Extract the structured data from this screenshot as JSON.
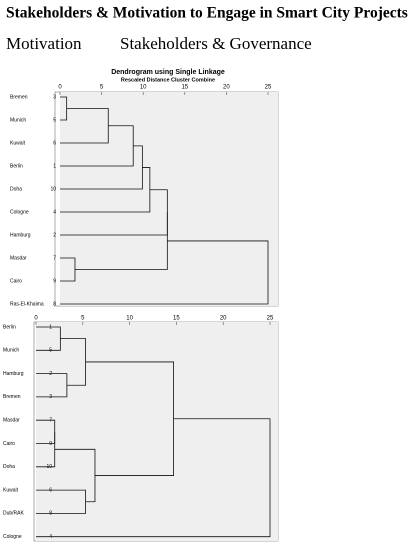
{
  "title": "Stakeholders & Motivation to Engage in Smart City Projects",
  "headings": [
    "Motivation",
    "Stakeholders & Governance"
  ],
  "chart_data": [
    {
      "type": "dendrogram",
      "title": "Dendrogram using Single Linkage",
      "subtitle": "Rescaled Distance Cluster Combine",
      "labels": [
        "Bremen",
        "Munich",
        "Kuwait",
        "Berlin",
        "Doha",
        "Cologne",
        "Hamburg",
        "Masdar",
        "Cairo",
        "Ras-El-Khaima"
      ],
      "case_numbers": [
        3,
        5,
        6,
        1,
        10,
        4,
        2,
        7,
        9,
        8
      ],
      "merges": [
        {
          "join": [
            0,
            1
          ],
          "distance": 0.8
        },
        {
          "join": [
            7,
            8
          ],
          "distance": 1.8
        },
        {
          "join": [
            10,
            2
          ],
          "distance": 5.8
        },
        {
          "join": [
            12,
            3
          ],
          "distance": 8.8
        },
        {
          "join": [
            13,
            4
          ],
          "distance": 9.9
        },
        {
          "join": [
            14,
            5
          ],
          "distance": 10.8
        },
        {
          "join": [
            15,
            6
          ],
          "distance": 12.9
        },
        {
          "join": [
            16,
            11
          ],
          "distance": 12.9
        },
        {
          "join": [
            17,
            9
          ],
          "distance": 25
        }
      ],
      "xlim": [
        0,
        25
      ],
      "xticks": [
        0,
        5,
        10,
        15,
        20,
        25
      ]
    },
    {
      "type": "dendrogram",
      "labels": [
        "Berlin",
        "Munich",
        "Hamburg",
        "Bremen",
        "Masdar",
        "Cairo",
        "Doha",
        "Kuwait",
        "Dub/RAK",
        "Cologne"
      ],
      "case_numbers": [
        1,
        5,
        2,
        3,
        7,
        9,
        10,
        6,
        8,
        4
      ],
      "merges": [
        {
          "join": [
            4,
            5
          ],
          "distance": 2.0
        },
        {
          "join": [
            10,
            6
          ],
          "distance": 2.0
        },
        {
          "join": [
            0,
            1
          ],
          "distance": 2.6
        },
        {
          "join": [
            2,
            3
          ],
          "distance": 3.3
        },
        {
          "join": [
            12,
            13
          ],
          "distance": 5.3
        },
        {
          "join": [
            7,
            8
          ],
          "distance": 5.3
        },
        {
          "join": [
            11,
            15
          ],
          "distance": 6.3
        },
        {
          "join": [
            14,
            16
          ],
          "distance": 14.7
        },
        {
          "join": [
            17,
            9
          ],
          "distance": 25
        }
      ],
      "xlim": [
        0,
        25
      ],
      "xticks": [
        0,
        5,
        10,
        15,
        20,
        25
      ]
    }
  ]
}
